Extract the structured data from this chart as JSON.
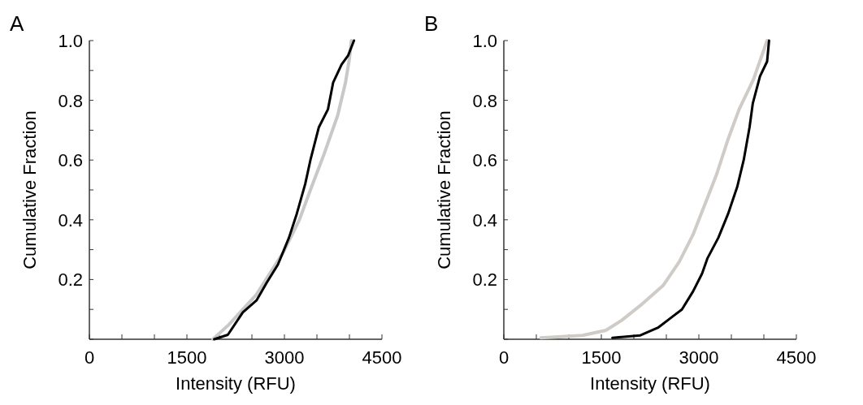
{
  "chart_data": [
    {
      "type": "line",
      "title": "A",
      "xlabel": "Intensity (RFU)",
      "ylabel": "Cumulative Fraction",
      "xlim": [
        0,
        4500
      ],
      "ylim": [
        0,
        1
      ],
      "xticks": [
        0,
        {
          "value": 500,
          "label": null
        },
        {
          "value": 1000,
          "label": null
        },
        1500,
        {
          "value": 2000,
          "label": null
        },
        {
          "value": 2500,
          "label": null
        },
        3000,
        {
          "value": 3500,
          "label": null
        },
        {
          "value": 4000,
          "label": null
        },
        4500
      ],
      "yticks": [
        {
          "value": 0,
          "label": null
        },
        {
          "value": 0.1,
          "label": null
        },
        0.2,
        {
          "value": 0.3,
          "label": null
        },
        0.4,
        {
          "value": 0.5,
          "label": null
        },
        0.6,
        {
          "value": 0.7,
          "label": null
        },
        0.8,
        {
          "value": 0.9,
          "label": null
        },
        {
          "value": 1,
          "label": "1.0"
        }
      ],
      "series": [
        {
          "color": "#c8c8c8",
          "x": [
            1900,
            2150,
            2570,
            2980,
            3230,
            3400,
            3610,
            3820,
            3940,
            4000,
            4030
          ],
          "values": [
            0,
            0.05,
            0.15,
            0.29,
            0.4,
            0.5,
            0.62,
            0.75,
            0.86,
            0.94,
            1
          ]
        },
        {
          "color": "#000000",
          "x": [
            1920,
            2130,
            2360,
            2570,
            2730,
            2900,
            3070,
            3190,
            3320,
            3400,
            3530,
            3670,
            3750,
            3880,
            3980,
            4070
          ],
          "values": [
            0,
            0.015,
            0.09,
            0.13,
            0.19,
            0.25,
            0.34,
            0.42,
            0.52,
            0.6,
            0.71,
            0.77,
            0.86,
            0.92,
            0.95,
            1
          ]
        }
      ]
    },
    {
      "type": "line",
      "title": "B",
      "xlabel": "Intensity (RFU)",
      "ylabel": "Cumulative Fraction",
      "xlim": [
        0,
        4500
      ],
      "ylim": [
        0,
        1
      ],
      "xticks": [
        0,
        {
          "value": 500,
          "label": null
        },
        {
          "value": 1000,
          "label": null
        },
        1500,
        {
          "value": 2000,
          "label": null
        },
        {
          "value": 2500,
          "label": null
        },
        3000,
        {
          "value": 3500,
          "label": null
        },
        {
          "value": 4000,
          "label": null
        },
        4500
      ],
      "yticks": [
        {
          "value": 0,
          "label": null
        },
        {
          "value": 0.1,
          "label": null
        },
        0.2,
        {
          "value": 0.3,
          "label": null
        },
        0.4,
        {
          "value": 0.5,
          "label": null
        },
        0.6,
        {
          "value": 0.7,
          "label": null
        },
        0.8,
        {
          "value": 0.9,
          "label": null
        },
        {
          "value": 1,
          "label": "1.0"
        }
      ],
      "series": [
        {
          "color": "#cfcbc6",
          "x": [
            570,
            1210,
            1570,
            1810,
            2100,
            2450,
            2700,
            2910,
            3090,
            3270,
            3450,
            3620,
            3840,
            4050
          ],
          "values": [
            0.005,
            0.013,
            0.03,
            0.063,
            0.113,
            0.18,
            0.26,
            0.35,
            0.45,
            0.55,
            0.67,
            0.77,
            0.87,
            1
          ]
        },
        {
          "color": "#000000",
          "x": [
            1670,
            2100,
            2380,
            2590,
            2740,
            2910,
            3050,
            3130,
            3300,
            3450,
            3590,
            3690,
            3780,
            3830,
            3940,
            4050,
            4080
          ],
          "values": [
            0.005,
            0.013,
            0.04,
            0.075,
            0.1,
            0.16,
            0.22,
            0.27,
            0.34,
            0.42,
            0.51,
            0.6,
            0.71,
            0.79,
            0.88,
            0.93,
            1
          ]
        }
      ]
    }
  ]
}
